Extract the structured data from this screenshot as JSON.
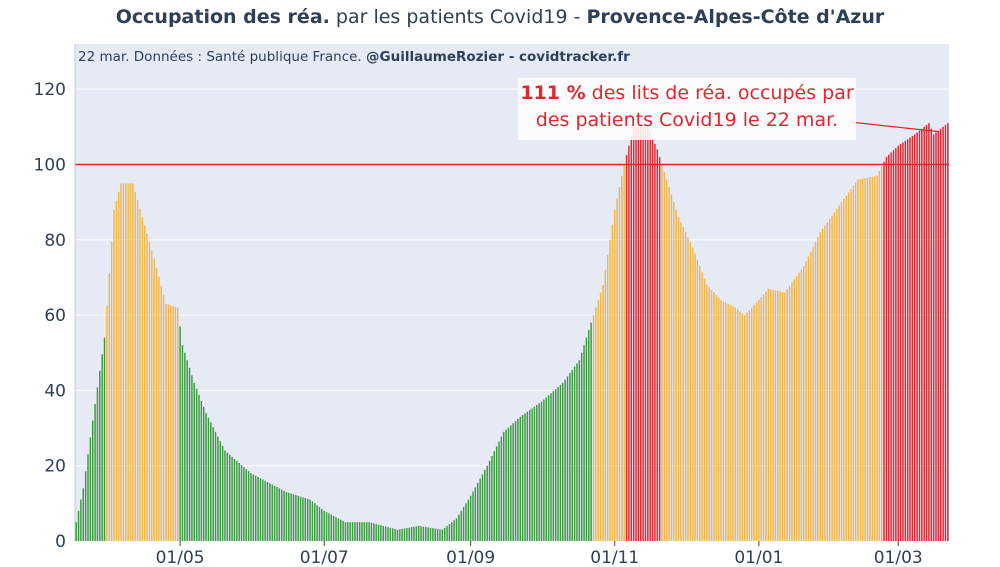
{
  "title": {
    "part1_bold": "Occupation des réa.",
    "part2": " par les patients Covid19 - ",
    "part3_bold": "Provence-Alpes-Côte d'Azur"
  },
  "source": {
    "prefix": "22 mar. Données : Santé publique France. ",
    "credit_bold": "@GuillaumeRozier - covidtracker.fr"
  },
  "annotation": {
    "value_bold": "111  %",
    "line1_rest": " des lits de réa. occupés par",
    "line2": "des patients Covid19 le 22 mar."
  },
  "colors": {
    "green": "#3a9b3f",
    "orange": "#f3b64c",
    "red": "#e1262d",
    "plot_bg": "#e5eaf5",
    "grid": "#ffffff",
    "text": "#2e3f58"
  },
  "chart_data": {
    "type": "bar",
    "title": "Occupation des réa. par les patients Covid19 - Provence-Alpes-Côte d'Azur",
    "xlabel": "",
    "ylabel": "",
    "x_start": "2020-03-18",
    "x_end": "2021-03-22",
    "ylim": [
      0,
      132
    ],
    "y_ticks": [
      0,
      20,
      40,
      60,
      80,
      100,
      120
    ],
    "x_ticks": [
      {
        "date": "2020-05-01",
        "label": "01/05"
      },
      {
        "date": "2020-07-01",
        "label": "01/07"
      },
      {
        "date": "2020-09-01",
        "label": "01/09"
      },
      {
        "date": "2020-11-01",
        "label": "01/11"
      },
      {
        "date": "2021-01-01",
        "label": "01/01"
      },
      {
        "date": "2021-03-01",
        "label": "01/03"
      }
    ],
    "reference_line": 100,
    "color_rule": "green < 60, orange 60–100, red > 100",
    "grid": true,
    "keypoints": [
      [
        "2020-03-18",
        5
      ],
      [
        "2020-03-21",
        14
      ],
      [
        "2020-03-25",
        32
      ],
      [
        "2020-03-30",
        54
      ],
      [
        "2020-04-03",
        88
      ],
      [
        "2020-04-06",
        95
      ],
      [
        "2020-04-11",
        95
      ],
      [
        "2020-04-15",
        86
      ],
      [
        "2020-04-20",
        75
      ],
      [
        "2020-04-25",
        63
      ],
      [
        "2020-04-30",
        62
      ],
      [
        "2020-05-02",
        52
      ],
      [
        "2020-05-07",
        42
      ],
      [
        "2020-05-12",
        34
      ],
      [
        "2020-05-20",
        24
      ],
      [
        "2020-05-31",
        18
      ],
      [
        "2020-06-15",
        13
      ],
      [
        "2020-06-25",
        11
      ],
      [
        "2020-07-01",
        8
      ],
      [
        "2020-07-10",
        5
      ],
      [
        "2020-07-20",
        5
      ],
      [
        "2020-08-01",
        3
      ],
      [
        "2020-08-10",
        4
      ],
      [
        "2020-08-20",
        3
      ],
      [
        "2020-08-26",
        6
      ],
      [
        "2020-09-01",
        12
      ],
      [
        "2020-09-08",
        20
      ],
      [
        "2020-09-15",
        29
      ],
      [
        "2020-09-22",
        33
      ],
      [
        "2020-10-01",
        37
      ],
      [
        "2020-10-10",
        42
      ],
      [
        "2020-10-17",
        48
      ],
      [
        "2020-10-22",
        58
      ],
      [
        "2020-10-27",
        68
      ],
      [
        "2020-11-01",
        88
      ],
      [
        "2020-11-05",
        100
      ],
      [
        "2020-11-09",
        110
      ],
      [
        "2020-11-15",
        110
      ],
      [
        "2020-11-19",
        104
      ],
      [
        "2020-11-22",
        98
      ],
      [
        "2020-11-28",
        86
      ],
      [
        "2020-12-04",
        78
      ],
      [
        "2020-12-10",
        68
      ],
      [
        "2020-12-16",
        64
      ],
      [
        "2020-12-22",
        62
      ],
      [
        "2020-12-26",
        60
      ],
      [
        "2021-01-01",
        64
      ],
      [
        "2021-01-05",
        67
      ],
      [
        "2021-01-12",
        66
      ],
      [
        "2021-01-20",
        73
      ],
      [
        "2021-01-27",
        82
      ],
      [
        "2021-02-05",
        90
      ],
      [
        "2021-02-12",
        96
      ],
      [
        "2021-02-20",
        97
      ],
      [
        "2021-02-24",
        102
      ],
      [
        "2021-03-01",
        105
      ],
      [
        "2021-03-08",
        108
      ],
      [
        "2021-03-14",
        111
      ],
      [
        "2021-03-16",
        108
      ],
      [
        "2021-03-22",
        111
      ]
    ]
  }
}
